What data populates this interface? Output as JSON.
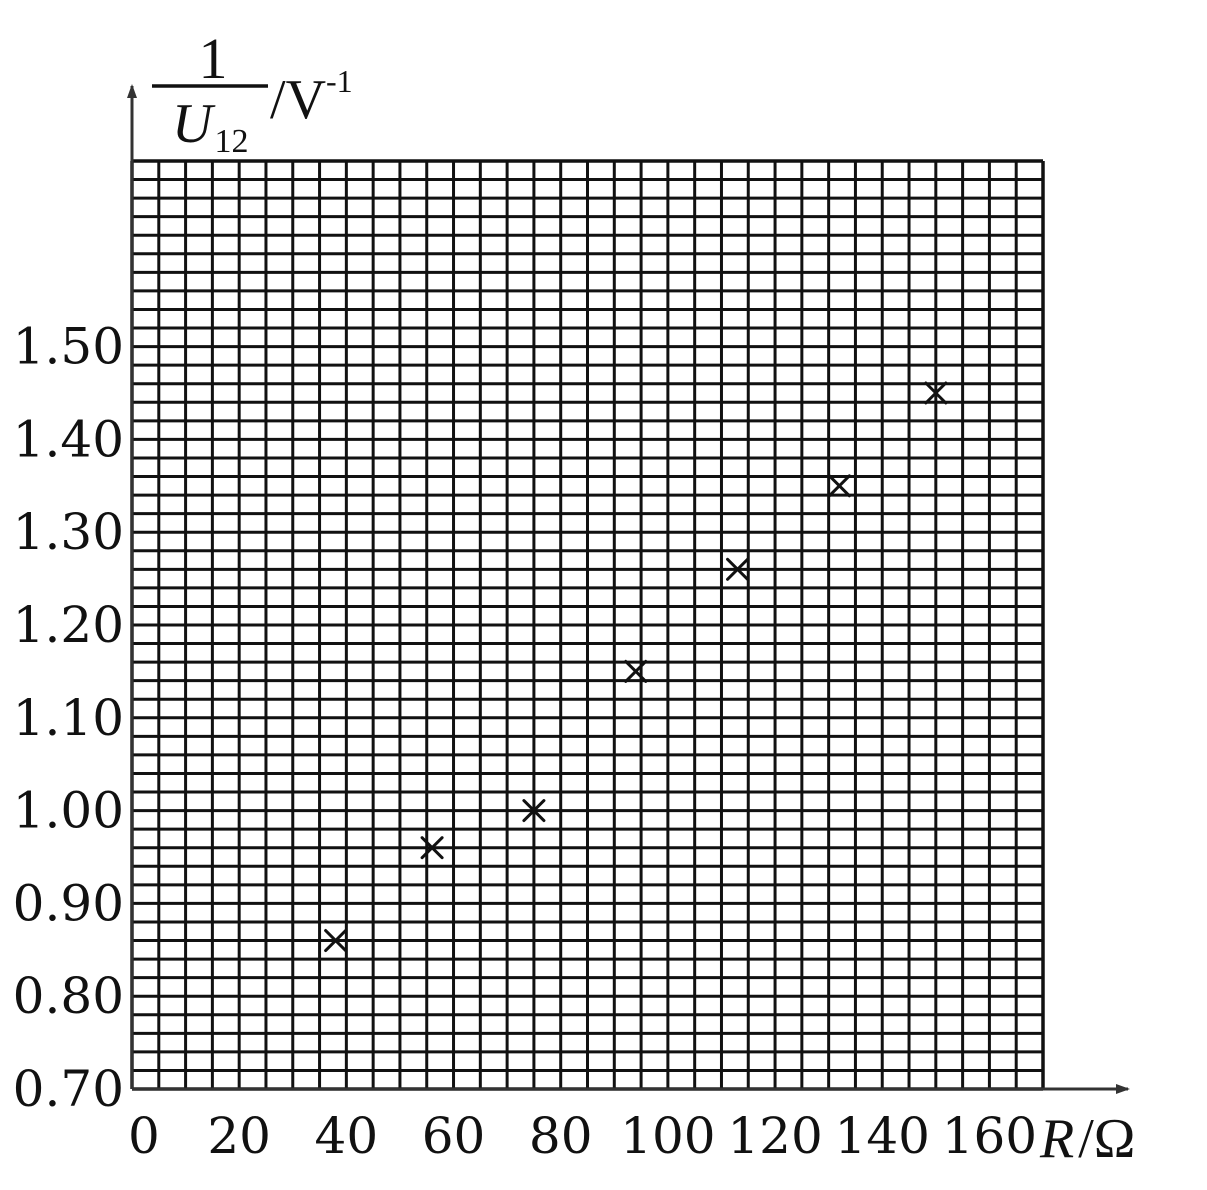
{
  "chart_data": {
    "type": "scatter",
    "xlabel": "R",
    "xlabel_unit": "Ω",
    "ylabel_numerator": "1",
    "ylabel_denominator": "U",
    "ylabel_subscript": "12",
    "ylabel_unit": "V",
    "ylabel_unit_exponent": "-1",
    "xlim": [
      0,
      170
    ],
    "ylim": [
      0.7,
      1.7
    ],
    "x_grid_step": 5,
    "y_grid_step": 0.02,
    "grid": true,
    "x_ticks": [
      "0",
      "20",
      "40",
      "60",
      "80",
      "100",
      "120",
      "140",
      "160"
    ],
    "x_tick_values": [
      0,
      20,
      40,
      60,
      80,
      100,
      120,
      140,
      160
    ],
    "y_ticks": [
      "0.70",
      "0.80",
      "0.90",
      "1.00",
      "1.10",
      "1.20",
      "1.30",
      "1.40",
      "1.50"
    ],
    "y_tick_values": [
      0.7,
      0.8,
      0.9,
      1.0,
      1.1,
      1.2,
      1.3,
      1.4,
      1.5
    ],
    "points": [
      {
        "x": 38,
        "y": 0.86
      },
      {
        "x": 56,
        "y": 0.96
      },
      {
        "x": 75,
        "y": 1.0
      },
      {
        "x": 94,
        "y": 1.15
      },
      {
        "x": 113,
        "y": 1.26
      },
      {
        "x": 132,
        "y": 1.35
      },
      {
        "x": 150,
        "y": 1.45
      }
    ],
    "marker": "x"
  }
}
